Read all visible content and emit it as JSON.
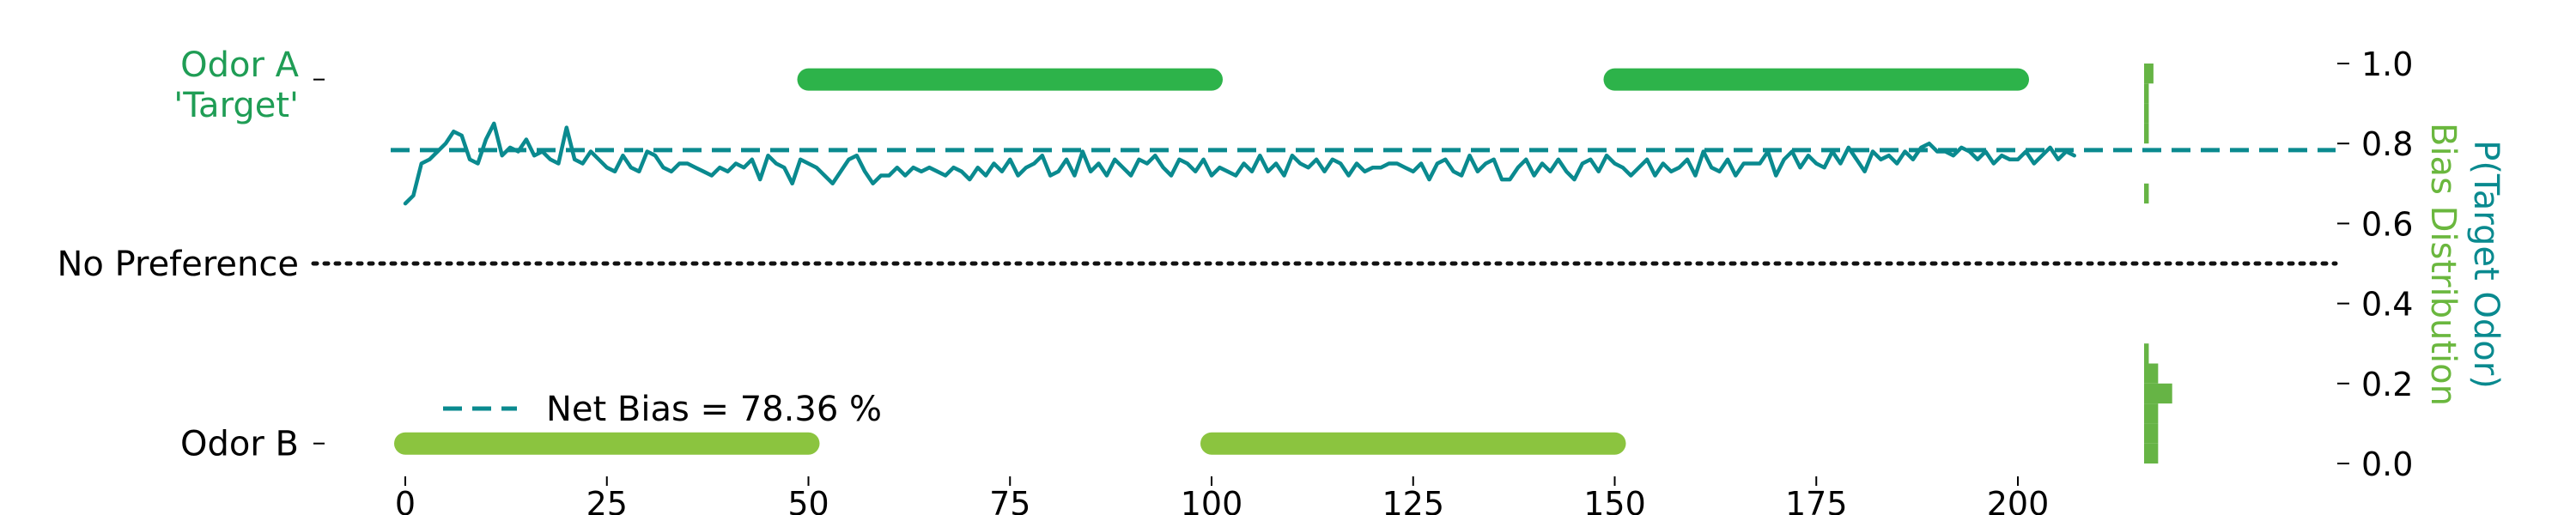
{
  "chart_data": {
    "type": "line",
    "x_ticks": [
      "0",
      "25",
      "50",
      "75",
      "100",
      "125",
      "150",
      "175",
      "200"
    ],
    "x_tick_values": [
      0,
      25,
      50,
      75,
      100,
      125,
      150,
      175,
      200
    ],
    "xlim": [
      -2,
      223
    ],
    "ylim": [
      -0.04,
      1.02
    ],
    "left_labels": {
      "odor_a": [
        "Odor A",
        "'Target'"
      ],
      "no_preference": "No Preference",
      "odor_b": "Odor B"
    },
    "right_ticks": [
      "0.0",
      "0.2",
      "0.4",
      "0.6",
      "0.8",
      "1.0"
    ],
    "right_tick_values": [
      0.0,
      0.2,
      0.4,
      0.6,
      0.8,
      1.0
    ],
    "right_label_1": "P(Target Odor)",
    "right_label_2": "Bias Distribution",
    "legend": {
      "label": "Net Bias = 78.36 %",
      "placement": "lower-left"
    },
    "net_bias": 0.7836,
    "no_preference_level": 0.5,
    "odor_a_level": 0.96,
    "odor_b_level": 0.05,
    "odor_a_blocks": [
      [
        50,
        100
      ],
      [
        150,
        200
      ]
    ],
    "odor_b_blocks": [
      [
        0,
        50
      ],
      [
        100,
        150
      ]
    ],
    "series": [
      {
        "x_start": 0,
        "x_step": 1,
        "values": [
          0.65,
          0.67,
          0.75,
          0.76,
          0.78,
          0.8,
          0.83,
          0.82,
          0.76,
          0.75,
          0.81,
          0.85,
          0.77,
          0.79,
          0.78,
          0.81,
          0.77,
          0.78,
          0.76,
          0.75,
          0.84,
          0.76,
          0.75,
          0.78,
          0.76,
          0.74,
          0.73,
          0.77,
          0.74,
          0.73,
          0.78,
          0.77,
          0.74,
          0.73,
          0.75,
          0.75,
          0.74,
          0.73,
          0.72,
          0.74,
          0.73,
          0.75,
          0.74,
          0.76,
          0.71,
          0.77,
          0.75,
          0.74,
          0.7,
          0.76,
          0.75,
          0.74,
          0.72,
          0.7,
          0.73,
          0.76,
          0.77,
          0.73,
          0.7,
          0.72,
          0.72,
          0.74,
          0.72,
          0.74,
          0.73,
          0.74,
          0.73,
          0.72,
          0.74,
          0.73,
          0.71,
          0.74,
          0.72,
          0.75,
          0.73,
          0.76,
          0.72,
          0.74,
          0.75,
          0.77,
          0.72,
          0.73,
          0.76,
          0.72,
          0.78,
          0.73,
          0.75,
          0.72,
          0.76,
          0.74,
          0.72,
          0.76,
          0.75,
          0.77,
          0.74,
          0.72,
          0.76,
          0.75,
          0.73,
          0.76,
          0.72,
          0.74,
          0.73,
          0.72,
          0.75,
          0.73,
          0.77,
          0.73,
          0.75,
          0.72,
          0.77,
          0.75,
          0.74,
          0.76,
          0.73,
          0.76,
          0.75,
          0.72,
          0.75,
          0.73,
          0.74,
          0.74,
          0.75,
          0.75,
          0.74,
          0.73,
          0.75,
          0.71,
          0.75,
          0.76,
          0.73,
          0.72,
          0.77,
          0.73,
          0.75,
          0.76,
          0.71,
          0.71,
          0.74,
          0.76,
          0.72,
          0.75,
          0.73,
          0.76,
          0.73,
          0.71,
          0.75,
          0.76,
          0.73,
          0.77,
          0.75,
          0.74,
          0.72,
          0.74,
          0.76,
          0.72,
          0.75,
          0.73,
          0.74,
          0.76,
          0.72,
          0.78,
          0.74,
          0.73,
          0.76,
          0.72,
          0.75,
          0.75,
          0.75,
          0.78,
          0.72,
          0.76,
          0.78,
          0.74,
          0.77,
          0.75,
          0.74,
          0.78,
          0.75,
          0.79,
          0.76,
          0.73,
          0.78,
          0.76,
          0.77,
          0.75,
          0.78,
          0.76,
          0.79,
          0.8,
          0.78,
          0.78,
          0.77,
          0.79,
          0.78,
          0.76,
          0.78,
          0.75,
          0.77,
          0.76,
          0.76,
          0.78,
          0.75,
          0.77,
          0.79,
          0.76,
          0.78,
          0.77
        ],
        "color": "#0a8a8f"
      }
    ],
    "histogram": {
      "bins": [
        0.0,
        0.05,
        0.1,
        0.15,
        0.2,
        0.25,
        0.3,
        0.35,
        0.4,
        0.45,
        0.5,
        0.55,
        0.6,
        0.65,
        0.7,
        0.75,
        0.8,
        0.85,
        0.9,
        0.95,
        1.0
      ],
      "counts": [
        3,
        3,
        3,
        6,
        3,
        1,
        0,
        0,
        0,
        0,
        0,
        0,
        0,
        1,
        0,
        0,
        1,
        1,
        1,
        2,
        40
      ],
      "color": "#66b445"
    },
    "colors": {
      "odor_a": "#2db34a",
      "odor_b": "#8bc43f",
      "line": "#0a8a8f",
      "label_a": "#1f9d55",
      "hist_label": "#6ab73e",
      "right_label_1": "#0a8a8f"
    }
  }
}
